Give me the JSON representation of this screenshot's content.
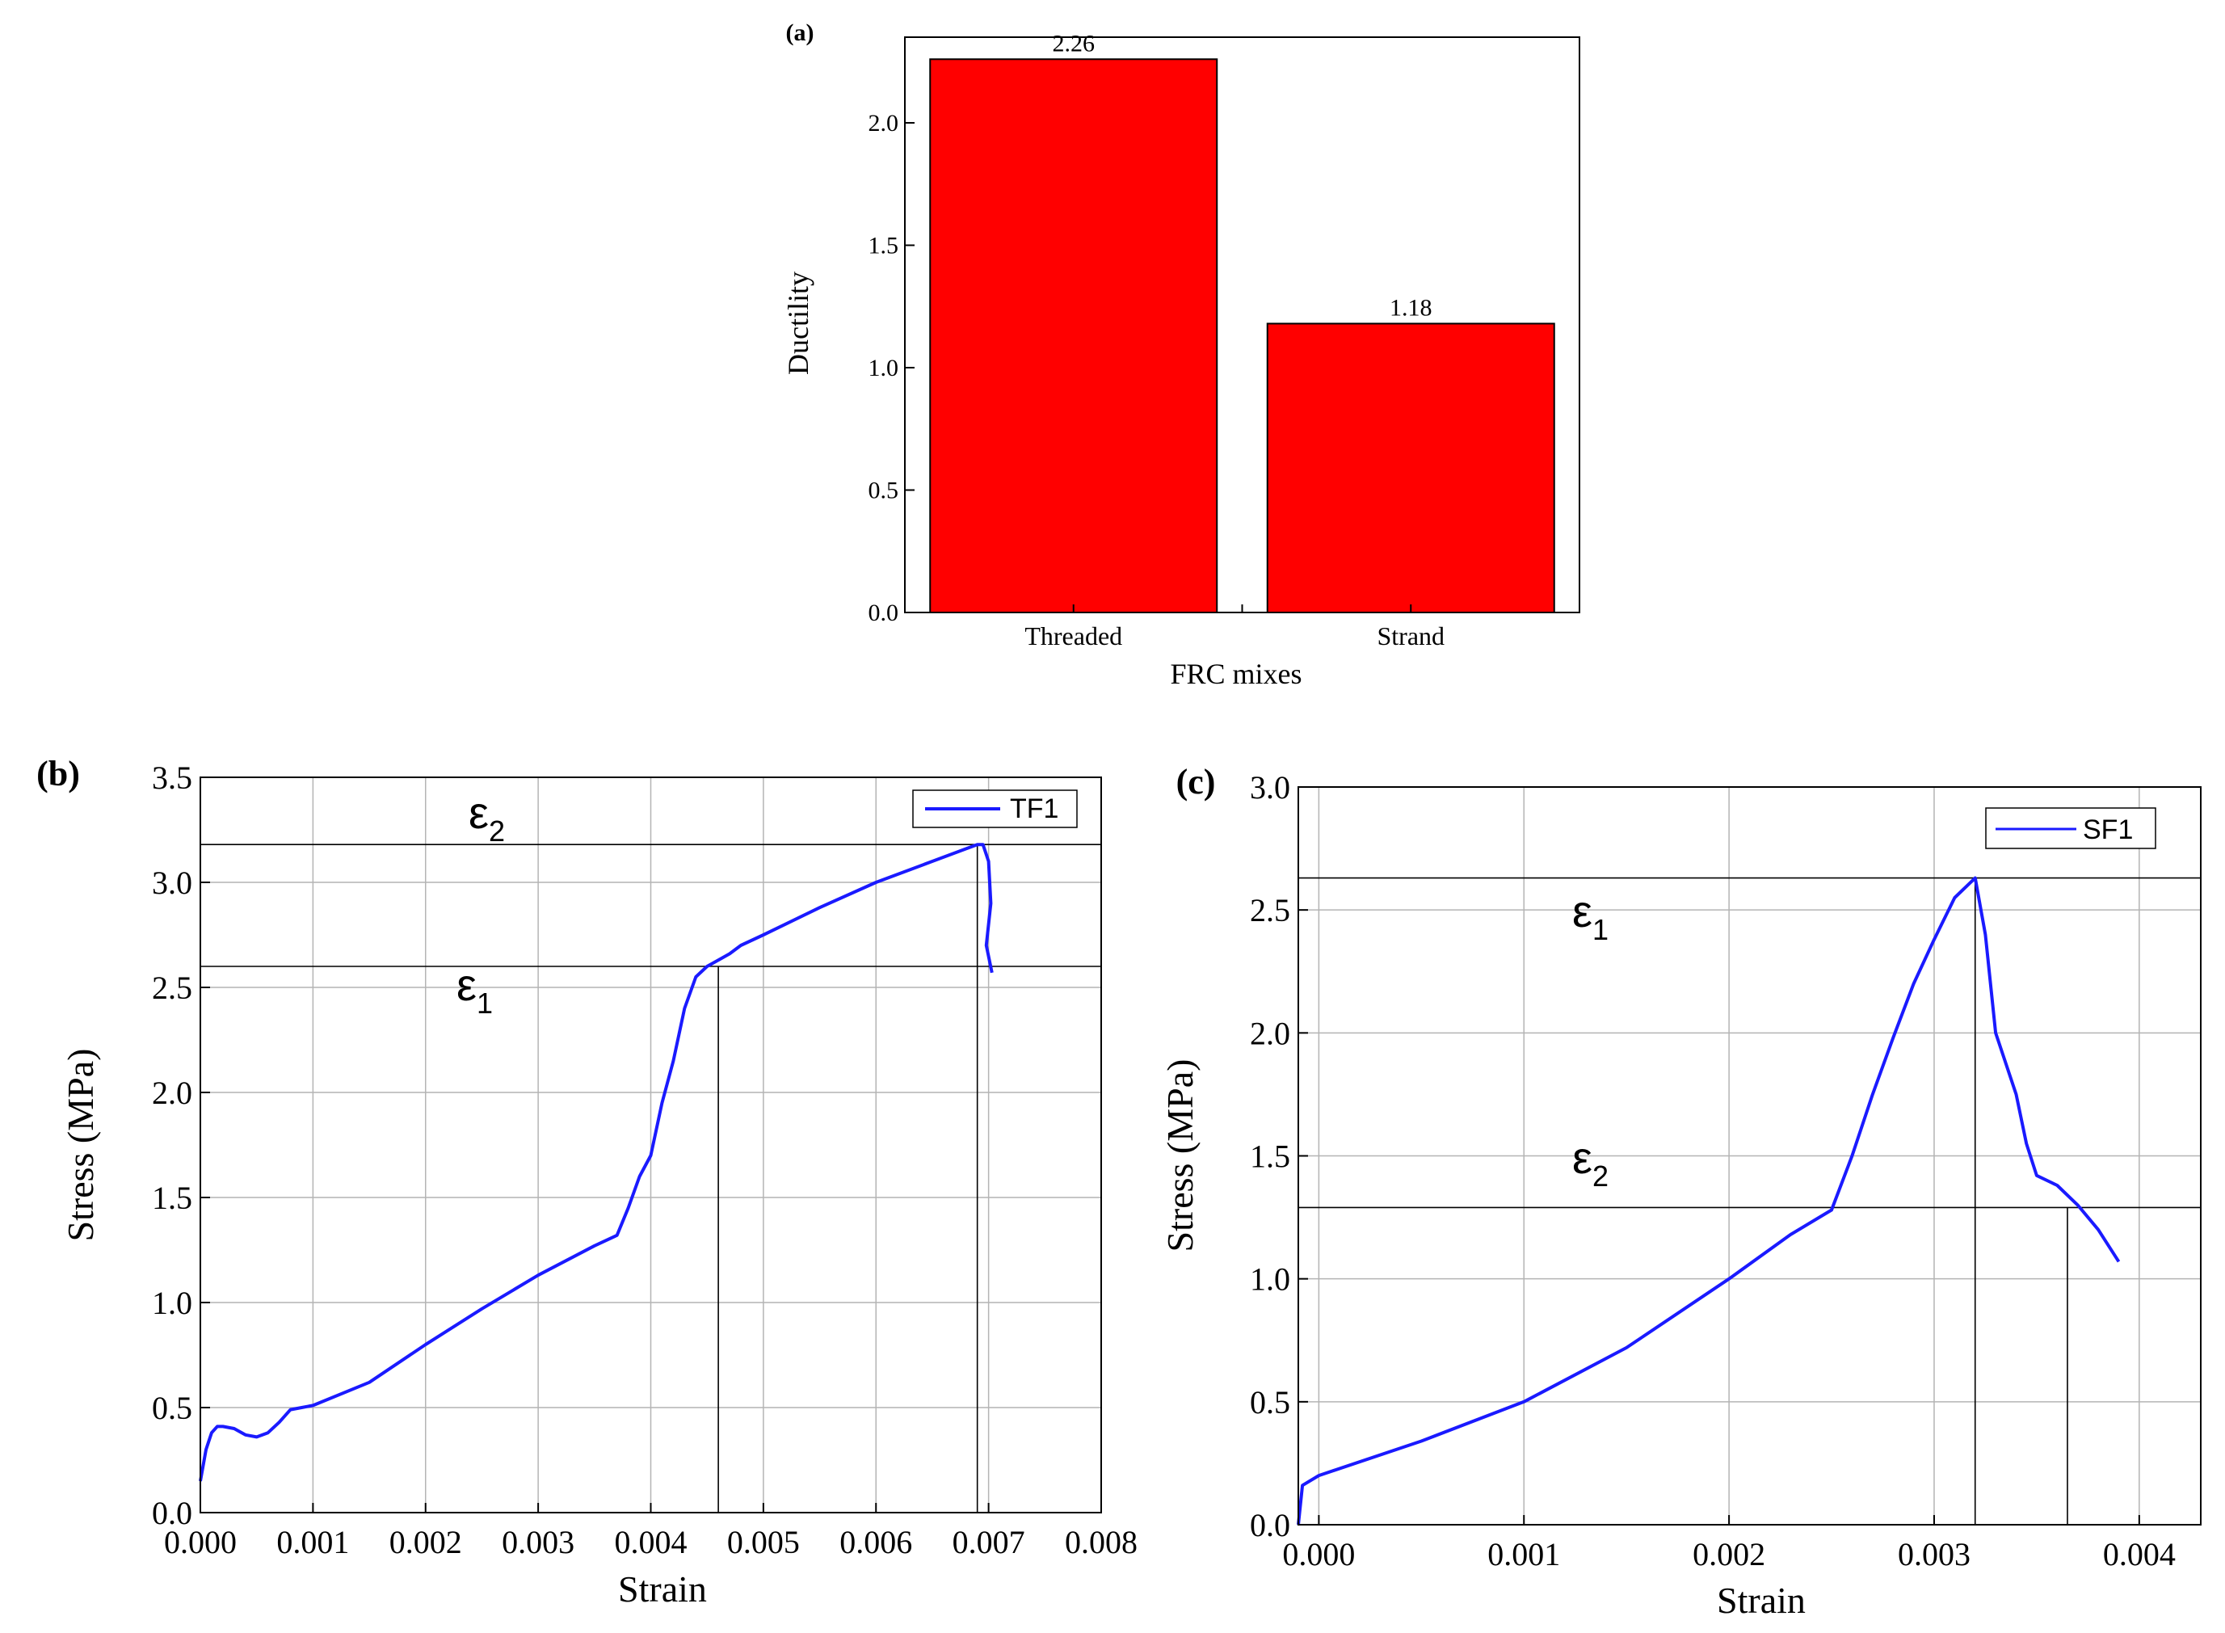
{
  "chart_data": [
    {
      "panel": "(a)",
      "type": "bar",
      "xlabel": "FRC mixes",
      "ylabel": "Ductility",
      "ylim": [
        0,
        2.35
      ],
      "yticks": [
        "0.0",
        "0.5",
        "1.0",
        "1.5",
        "2.0"
      ],
      "yticks_values": [
        0,
        0.5,
        1.0,
        1.5,
        2.0
      ],
      "categories": [
        "Threaded",
        "Strand"
      ],
      "values": [
        2.26,
        1.18
      ],
      "value_labels": [
        "2.26",
        "1.18"
      ],
      "bar_color": "#ff0000",
      "grid": false,
      "legend": "none"
    },
    {
      "panel": "(b)",
      "type": "line",
      "xlabel": "Strain",
      "ylabel": "Stress (MPa)",
      "xlim": [
        0,
        0.008
      ],
      "ylim": [
        0,
        3.5
      ],
      "xticks": [
        "0.000",
        "0.001",
        "0.002",
        "0.003",
        "0.004",
        "0.005",
        "0.006",
        "0.007",
        "0.008"
      ],
      "xticks_values": [
        0,
        0.001,
        0.002,
        0.003,
        0.004,
        0.005,
        0.006,
        0.007,
        0.008
      ],
      "yticks": [
        "0.0",
        "0.5",
        "1.0",
        "1.5",
        "2.0",
        "2.5",
        "3.0",
        "3.5"
      ],
      "yticks_values": [
        0,
        0.5,
        1.0,
        1.5,
        2.0,
        2.5,
        3.0,
        3.5
      ],
      "grid": true,
      "legend": "top-right",
      "series": [
        {
          "name": "TF1",
          "color": "#1a1aff",
          "x": [
            0,
            5e-05,
            0.0001,
            0.00015,
            0.0002,
            0.0003,
            0.0004,
            0.0005,
            0.0006,
            0.0007,
            0.0008,
            0.0009,
            0.001,
            0.0015,
            0.002,
            0.0025,
            0.003,
            0.0035,
            0.0037,
            0.0038,
            0.0039,
            0.004,
            0.0041,
            0.0042,
            0.0043,
            0.0044,
            0.0045,
            0.0046,
            0.0047,
            0.0048,
            0.005,
            0.0055,
            0.006,
            0.0065,
            0.0068,
            0.0069,
            0.00695,
            0.007,
            0.00702,
            0.00698,
            0.00703
          ],
          "y": [
            0.15,
            0.3,
            0.38,
            0.41,
            0.41,
            0.4,
            0.37,
            0.36,
            0.38,
            0.43,
            0.49,
            0.5,
            0.51,
            0.62,
            0.8,
            0.97,
            1.13,
            1.27,
            1.32,
            1.45,
            1.6,
            1.7,
            1.95,
            2.15,
            2.4,
            2.55,
            2.6,
            2.63,
            2.66,
            2.7,
            2.75,
            2.88,
            3.0,
            3.1,
            3.16,
            3.18,
            3.18,
            3.1,
            2.9,
            2.7,
            2.57
          ]
        }
      ],
      "reference_lines": [
        {
          "label": "ε2",
          "y": 3.18,
          "x_end": 0.0069
        },
        {
          "label": "ε1",
          "y": 2.6,
          "x_end": 0.0046
        }
      ]
    },
    {
      "panel": "(c)",
      "type": "line",
      "xlabel": "Strain",
      "ylabel": "Stress (MPa)",
      "xlim": [
        -0.0001,
        0.0043
      ],
      "ylim": [
        0,
        3.0
      ],
      "xticks": [
        "0.000",
        "0.001",
        "0.002",
        "0.003",
        "0.004"
      ],
      "xticks_values": [
        0,
        0.001,
        0.002,
        0.003,
        0.004
      ],
      "yticks": [
        "0.0",
        "0.5",
        "1.0",
        "1.5",
        "2.0",
        "2.5",
        "3.0"
      ],
      "yticks_values": [
        0,
        0.5,
        1.0,
        1.5,
        2.0,
        2.5,
        3.0
      ],
      "grid": true,
      "legend": "top-right",
      "series": [
        {
          "name": "SF1",
          "color": "#1a1aff",
          "x": [
            -0.0001,
            -8e-05,
            0,
            0.0005,
            0.001,
            0.0015,
            0.002,
            0.0023,
            0.0025,
            0.0026,
            0.0027,
            0.0028,
            0.0029,
            0.003,
            0.0031,
            0.0032,
            0.00325,
            0.0033,
            0.0034,
            0.00345,
            0.0035,
            0.0036,
            0.0037,
            0.0038,
            0.0039
          ],
          "y": [
            0.0,
            0.16,
            0.2,
            0.34,
            0.5,
            0.72,
            1.0,
            1.18,
            1.28,
            1.5,
            1.75,
            1.98,
            2.2,
            2.38,
            2.55,
            2.63,
            2.4,
            2.0,
            1.75,
            1.55,
            1.42,
            1.38,
            1.3,
            1.2,
            1.07
          ]
        }
      ],
      "reference_lines": [
        {
          "label": "ε1",
          "y": 2.63,
          "x_end": 0.0032
        },
        {
          "label": "ε2",
          "y": 1.29,
          "x_end": 0.00365
        }
      ]
    }
  ]
}
